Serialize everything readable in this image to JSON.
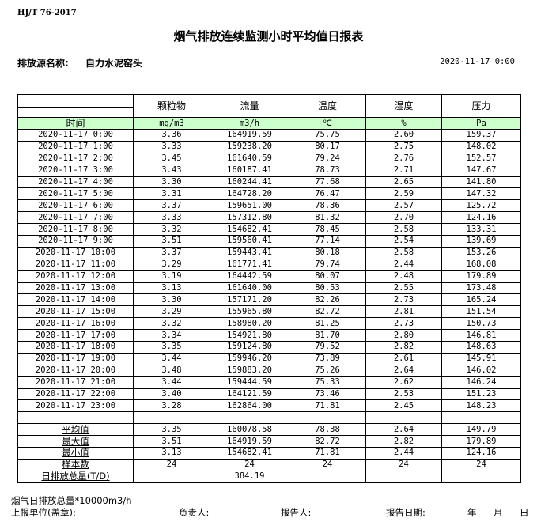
{
  "standard": "HJ/T  76-2017",
  "title": "烟气排放连续监测小时平均值日报表",
  "source_label": "排放源名称:",
  "source_name": "自力水泥窑头",
  "report_datetime": "2020-11-17 0:00",
  "table": {
    "headers": [
      "",
      "颗粒物",
      "流量",
      "温度",
      "湿度",
      "压力"
    ],
    "units": [
      "时间",
      "mg/m3",
      "m3/h",
      "℃",
      "%",
      "Pa"
    ],
    "rows": [
      [
        "2020-11-17 0:00",
        "3.36",
        "164919.59",
        "75.75",
        "2.60",
        "159.37"
      ],
      [
        "2020-11-17 1:00",
        "3.33",
        "159238.20",
        "80.17",
        "2.75",
        "148.02"
      ],
      [
        "2020-11-17 2:00",
        "3.45",
        "161640.59",
        "79.24",
        "2.76",
        "152.57"
      ],
      [
        "2020-11-17 3:00",
        "3.43",
        "160187.41",
        "78.73",
        "2.71",
        "147.67"
      ],
      [
        "2020-11-17 4:00",
        "3.30",
        "160244.41",
        "77.68",
        "2.65",
        "141.80"
      ],
      [
        "2020-11-17 5:00",
        "3.31",
        "164728.20",
        "76.47",
        "2.59",
        "147.32"
      ],
      [
        "2020-11-17 6:00",
        "3.37",
        "159651.00",
        "78.36",
        "2.57",
        "125.72"
      ],
      [
        "2020-11-17 7:00",
        "3.33",
        "157312.80",
        "81.32",
        "2.70",
        "124.16"
      ],
      [
        "2020-11-17 8:00",
        "3.32",
        "154682.41",
        "78.45",
        "2.58",
        "133.31"
      ],
      [
        "2020-11-17 9:00",
        "3.51",
        "159560.41",
        "77.14",
        "2.54",
        "139.69"
      ],
      [
        "2020-11-17 10:00",
        "3.37",
        "159443.41",
        "80.18",
        "2.58",
        "153.26"
      ],
      [
        "2020-11-17 11:00",
        "3.29",
        "161771.41",
        "79.74",
        "2.44",
        "168.08"
      ],
      [
        "2020-11-17 12:00",
        "3.19",
        "164442.59",
        "80.07",
        "2.48",
        "179.89"
      ],
      [
        "2020-11-17 13:00",
        "3.13",
        "161640.00",
        "80.53",
        "2.55",
        "173.48"
      ],
      [
        "2020-11-17 14:00",
        "3.30",
        "157171.20",
        "82.26",
        "2.73",
        "165.24"
      ],
      [
        "2020-11-17 15:00",
        "3.29",
        "155965.80",
        "82.72",
        "2.81",
        "151.54"
      ],
      [
        "2020-11-17 16:00",
        "3.32",
        "158980.20",
        "81.25",
        "2.73",
        "150.73"
      ],
      [
        "2020-11-17 17:00",
        "3.34",
        "154921.80",
        "81.70",
        "2.80",
        "146.81"
      ],
      [
        "2020-11-17 18:00",
        "3.35",
        "159124.80",
        "79.52",
        "2.82",
        "148.63"
      ],
      [
        "2020-11-17 19:00",
        "3.44",
        "159946.20",
        "73.89",
        "2.61",
        "145.91"
      ],
      [
        "2020-11-17 20:00",
        "3.48",
        "159883.20",
        "75.26",
        "2.64",
        "146.02"
      ],
      [
        "2020-11-17 21:00",
        "3.44",
        "159444.59",
        "75.33",
        "2.62",
        "146.24"
      ],
      [
        "2020-11-17 22:00",
        "3.40",
        "164121.59",
        "73.46",
        "2.53",
        "151.23"
      ],
      [
        "2020-11-17 23:00",
        "3.28",
        "162864.00",
        "71.81",
        "2.45",
        "148.23"
      ]
    ],
    "summary": [
      [
        "平均值",
        "3.35",
        "160078.58",
        "78.38",
        "2.64",
        "149.79"
      ],
      [
        "最大值",
        "3.51",
        "164919.59",
        "82.72",
        "2.82",
        "179.89"
      ],
      [
        "最小值",
        "3.13",
        "154682.41",
        "71.81",
        "2.44",
        "124.16"
      ],
      [
        "样本数",
        "24",
        "24",
        "24",
        "24",
        "24"
      ],
      [
        "日排放总量(T/D)",
        "",
        "384.19",
        "",
        "",
        ""
      ]
    ]
  },
  "footer": {
    "note": "烟气日排放总量*10000m3/h",
    "unit_label": "上报单位(盖章):",
    "responsible_label": "负责人:",
    "reporter_label": "报告人:",
    "report_date_label": "报告日期:",
    "year": "年",
    "month": "月",
    "day": "日"
  },
  "colors": {
    "header_green": "#ccffcc"
  }
}
